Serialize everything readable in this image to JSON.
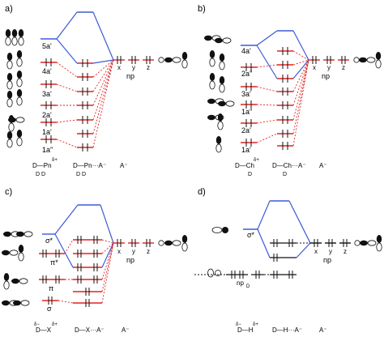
{
  "panels": {
    "a": {
      "tag": "a)",
      "levels": [
        "5a'",
        "4a'",
        "3a'",
        "2a'",
        "1a'",
        "1a''"
      ],
      "np": "np",
      "axes": [
        "x",
        "y",
        "z"
      ],
      "footer": {
        "donor_main": "D—Pn",
        "donor_charge": "δ+",
        "donor_sub": "D    D",
        "complex_main": "D—Pn···A⁻",
        "complex_sub": "D   D",
        "anion": "A⁻"
      }
    },
    "b": {
      "tag": "b)",
      "levels": [
        "4a'",
        "2a''",
        "3a'",
        "1a''",
        "2a'",
        "1a'"
      ],
      "np": "np",
      "axes": [
        "x",
        "y",
        "z"
      ],
      "footer": {
        "donor_main": "D—Ch",
        "donor_charge": "δ+",
        "donor_sub": "D",
        "complex_main": "D—Ch···A⁻",
        "complex_sub": "D",
        "anion": "A⁻"
      }
    },
    "c": {
      "tag": "c)",
      "levels": [
        "σ*",
        "π*",
        "π",
        "σ"
      ],
      "np": "np",
      "axes": [
        "x",
        "y",
        "z"
      ],
      "footer": {
        "donor_main": "D—X",
        "donor_charge": "δ+",
        "donor_charge_neg": "δ−",
        "complex_main": "D—X···A⁻",
        "anion": "A⁻"
      }
    },
    "d": {
      "tag": "d)",
      "levels": [
        "σ*"
      ],
      "np_low": "np",
      "np_low_sub": "D",
      "np": "np",
      "axes": [
        "x",
        "y",
        "z"
      ],
      "footer": {
        "donor_main": "D—H",
        "donor_charge": "δ+",
        "donor_charge_neg": "δ−",
        "complex_main": "D—H···A⁻",
        "anion": "A⁻"
      }
    }
  },
  "colors": {
    "blue": "#3b5bd6",
    "red": "#e02222",
    "black": "#111111"
  }
}
